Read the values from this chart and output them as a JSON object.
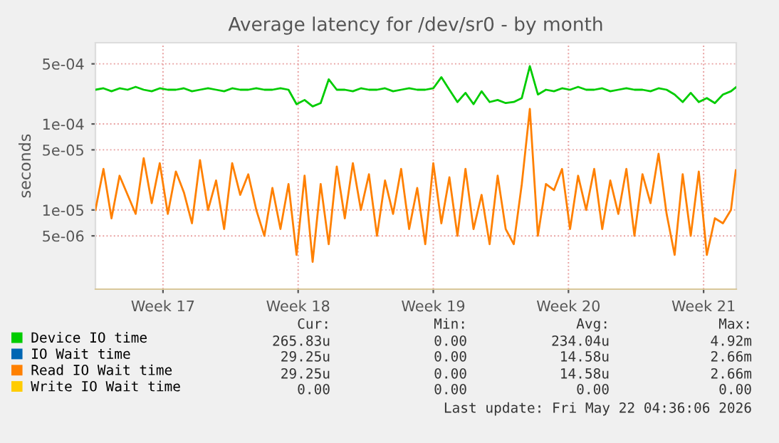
{
  "chart_data": {
    "type": "line",
    "title": "Average latency for /dev/sr0 - by month",
    "ylabel": "seconds",
    "log": "y",
    "grid": true,
    "legend": "bottom",
    "marker": "none",
    "line_style": "solid",
    "ylim": [
      1.2e-06,
      0.00088
    ],
    "yticks": [
      {
        "value": 5e-06,
        "label": "5e-06"
      },
      {
        "value": 1e-05,
        "label": "1e-05"
      },
      {
        "value": 5e-05,
        "label": "5e-05"
      },
      {
        "value": 0.0001,
        "label": "1e-04"
      },
      {
        "value": 0.0005,
        "label": "5e-04"
      }
    ],
    "xlim": [
      "2026-04-19T00:00",
      "2026-05-22T04:36"
    ],
    "xticks": [
      {
        "value": "2026-04-22T12:00",
        "label": "Week 17"
      },
      {
        "value": "2026-04-29T12:00",
        "label": "Week 18"
      },
      {
        "value": "2026-05-06T12:00",
        "label": "Week 19"
      },
      {
        "value": "2026-05-13T12:00",
        "label": "Week 20"
      },
      {
        "value": "2026-05-20T12:00",
        "label": "Week 21"
      }
    ],
    "x": [
      "2026-04-19T00:00",
      "2026-04-19T10:00",
      "2026-04-19T20:00",
      "2026-04-20T06:00",
      "2026-04-20T16:00",
      "2026-04-21T02:00",
      "2026-04-21T12:00",
      "2026-04-21T22:00",
      "2026-04-22T08:00",
      "2026-04-22T18:00",
      "2026-04-23T04:00",
      "2026-04-23T14:00",
      "2026-04-24T00:00",
      "2026-04-24T10:00",
      "2026-04-24T20:00",
      "2026-04-25T06:00",
      "2026-04-25T16:00",
      "2026-04-26T02:00",
      "2026-04-26T12:00",
      "2026-04-26T22:00",
      "2026-04-27T08:00",
      "2026-04-27T18:00",
      "2026-04-28T04:00",
      "2026-04-28T14:00",
      "2026-04-29T00:00",
      "2026-04-29T10:00",
      "2026-04-29T20:00",
      "2026-04-30T06:00",
      "2026-04-30T16:00",
      "2026-05-01T02:00",
      "2026-05-01T12:00",
      "2026-05-01T22:00",
      "2026-05-02T08:00",
      "2026-05-02T18:00",
      "2026-05-03T04:00",
      "2026-05-03T14:00",
      "2026-05-04T00:00",
      "2026-05-04T10:00",
      "2026-05-04T20:00",
      "2026-05-05T06:00",
      "2026-05-05T16:00",
      "2026-05-06T02:00",
      "2026-05-06T12:00",
      "2026-05-06T22:00",
      "2026-05-07T08:00",
      "2026-05-07T18:00",
      "2026-05-08T04:00",
      "2026-05-08T14:00",
      "2026-05-09T00:00",
      "2026-05-09T10:00",
      "2026-05-09T20:00",
      "2026-05-10T06:00",
      "2026-05-10T16:00",
      "2026-05-11T02:00",
      "2026-05-11T12:00",
      "2026-05-11T22:00",
      "2026-05-12T08:00",
      "2026-05-12T18:00",
      "2026-05-13T04:00",
      "2026-05-13T14:00",
      "2026-05-14T00:00",
      "2026-05-14T10:00",
      "2026-05-14T20:00",
      "2026-05-15T06:00",
      "2026-05-15T16:00",
      "2026-05-16T02:00",
      "2026-05-16T12:00",
      "2026-05-16T22:00",
      "2026-05-17T08:00",
      "2026-05-17T18:00",
      "2026-05-18T04:00",
      "2026-05-18T14:00",
      "2026-05-19T00:00",
      "2026-05-19T10:00",
      "2026-05-19T20:00",
      "2026-05-20T06:00",
      "2026-05-20T16:00",
      "2026-05-21T02:00",
      "2026-05-21T12:00",
      "2026-05-21T22:00",
      "2026-05-22T04:00"
    ],
    "series": [
      {
        "name": "Device IO time",
        "color": "#00cc00",
        "values": [
          0.00025,
          0.00026,
          0.00024,
          0.00026,
          0.00025,
          0.00027,
          0.00025,
          0.00024,
          0.00026,
          0.00025,
          0.00025,
          0.00026,
          0.00024,
          0.00025,
          0.00026,
          0.00025,
          0.00024,
          0.00026,
          0.00025,
          0.00025,
          0.00026,
          0.00025,
          0.00025,
          0.00026,
          0.00025,
          0.00017,
          0.00019,
          0.00016,
          0.000175,
          0.00033,
          0.00025,
          0.00025,
          0.00024,
          0.00026,
          0.00025,
          0.00025,
          0.00026,
          0.00024,
          0.00025,
          0.00026,
          0.00025,
          0.00025,
          0.00026,
          0.00035,
          0.00025,
          0.00018,
          0.00023,
          0.00017,
          0.00024,
          0.00018,
          0.00019,
          0.000175,
          0.00018,
          0.0002,
          0.00047,
          0.00022,
          0.00025,
          0.00024,
          0.00026,
          0.00025,
          0.00027,
          0.00025,
          0.00025,
          0.00026,
          0.00024,
          0.00025,
          0.00026,
          0.00025,
          0.00025,
          0.00024,
          0.00026,
          0.00025,
          0.00022,
          0.00018,
          0.00023,
          0.00018,
          0.0002,
          0.000175,
          0.00022,
          0.00024,
          0.000266
        ]
      },
      {
        "name": "IO Wait time",
        "color": "#0066b3",
        "values": [
          null,
          null,
          null,
          null,
          null,
          null,
          null,
          null,
          null,
          null,
          null,
          null,
          null,
          null,
          null,
          null,
          null,
          null,
          null,
          null,
          null,
          null,
          null,
          null,
          null,
          null,
          null,
          null,
          null,
          null,
          null,
          null,
          null,
          null,
          null,
          null,
          null,
          null,
          null,
          null,
          null,
          null,
          null,
          null,
          null,
          null,
          null,
          null,
          null,
          null,
          null,
          null,
          null,
          null,
          null,
          null,
          null,
          null,
          null,
          null,
          null,
          null,
          null,
          null,
          null,
          null,
          null,
          null,
          null,
          null,
          null,
          null,
          null,
          null,
          null,
          null,
          null,
          null,
          null,
          null,
          null
        ]
      },
      {
        "name": "Read IO Wait time",
        "color": "#ff8000",
        "values": [
          1e-05,
          3e-05,
          8e-06,
          2.5e-05,
          1.5e-05,
          9e-06,
          4e-05,
          1.2e-05,
          3.5e-05,
          9e-06,
          2.8e-05,
          1.6e-05,
          7e-06,
          3.8e-05,
          1e-05,
          2.2e-05,
          6e-06,
          3.5e-05,
          1.5e-05,
          2.6e-05,
          1e-05,
          5e-06,
          1.8e-05,
          6e-06,
          2e-05,
          3e-06,
          2.5e-05,
          2.5e-06,
          2e-05,
          4e-06,
          3.2e-05,
          8e-06,
          3.5e-05,
          1e-05,
          2.6e-05,
          5e-06,
          2.2e-05,
          9e-06,
          3e-05,
          6e-06,
          1.8e-05,
          4e-06,
          3.5e-05,
          7e-06,
          2.4e-05,
          5e-06,
          3e-05,
          6e-06,
          1.5e-05,
          4e-06,
          2.5e-05,
          6e-06,
          4e-06,
          2e-05,
          0.00015,
          5e-06,
          2e-05,
          1.7e-05,
          3e-05,
          6e-06,
          2.5e-05,
          1e-05,
          3e-05,
          6e-06,
          2.2e-05,
          9e-06,
          3e-05,
          5e-06,
          2.6e-05,
          1.2e-05,
          4.5e-05,
          9e-06,
          3e-06,
          2.6e-05,
          5e-06,
          2.8e-05,
          3e-06,
          8e-06,
          7e-06,
          1e-05,
          2.9e-05
        ]
      },
      {
        "name": "Write IO Wait time",
        "color": "#ffcc00",
        "values": [
          null,
          null,
          null,
          null,
          null,
          null,
          null,
          null,
          null,
          null,
          null,
          null,
          null,
          null,
          null,
          null,
          null,
          null,
          null,
          null,
          null,
          null,
          null,
          null,
          null,
          null,
          null,
          null,
          null,
          null,
          null,
          null,
          null,
          null,
          null,
          null,
          null,
          null,
          null,
          null,
          null,
          null,
          null,
          null,
          null,
          null,
          null,
          null,
          null,
          null,
          null,
          null,
          null,
          null,
          null,
          null,
          null,
          null,
          null,
          null,
          null,
          null,
          null,
          null,
          null,
          null,
          null,
          null,
          null,
          null,
          null,
          null,
          null,
          null,
          null,
          null,
          null,
          null,
          null,
          null,
          null
        ]
      }
    ],
    "annotations": [
      "Cur:",
      "Min:",
      "Avg:",
      "Max:",
      "265.83u",
      "0.00",
      "234.04u",
      "4.92m",
      "29.25u",
      "0.00",
      "14.58u",
      "2.66m",
      "29.25u",
      "0.00",
      "14.58u",
      "2.66m",
      "0.00",
      "0.00",
      "0.00",
      "0.00",
      "Last update: Fri May 22 04:36:06 2026"
    ]
  }
}
